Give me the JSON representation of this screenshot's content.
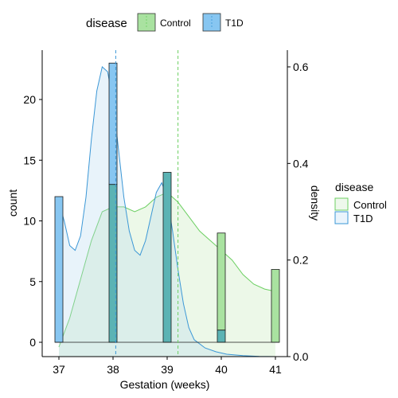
{
  "chart_data": {
    "type": "bar",
    "xlabel": "Gestation (weeks)",
    "ylabel": "count",
    "ylabel_right": "density",
    "x_ticks": [
      37,
      38,
      39,
      40,
      41
    ],
    "y_ticks": [
      0,
      5,
      10,
      15,
      20
    ],
    "y_right_ticks": [
      "0.0",
      "0.2",
      "0.4",
      "0.6"
    ],
    "xlim": [
      36.9,
      41.1
    ],
    "ylim": [
      0,
      23
    ],
    "y_right_lim": [
      0,
      0.6
    ],
    "legend_title": "disease",
    "legend_top": [
      "Control",
      "T1D"
    ],
    "legend_right": [
      "Control",
      "T1D"
    ],
    "series": [
      {
        "name": "Control",
        "color": "#6ccf62",
        "fill": "#a9e2a0",
        "bars": [
          {
            "x": 37,
            "count": 0
          },
          {
            "x": 38,
            "count": 13
          },
          {
            "x": 39,
            "count": 14
          },
          {
            "x": 40,
            "count": 9
          },
          {
            "x": 41,
            "count": 6
          }
        ],
        "density": [
          [
            37,
            0.02
          ],
          [
            37.2,
            0.08
          ],
          [
            37.4,
            0.16
          ],
          [
            37.6,
            0.24
          ],
          [
            37.8,
            0.3
          ],
          [
            38,
            0.31
          ],
          [
            38.2,
            0.31
          ],
          [
            38.4,
            0.3
          ],
          [
            38.6,
            0.31
          ],
          [
            38.8,
            0.33
          ],
          [
            39,
            0.34
          ],
          [
            39.2,
            0.32
          ],
          [
            39.4,
            0.29
          ],
          [
            39.6,
            0.26
          ],
          [
            39.8,
            0.24
          ],
          [
            40,
            0.22
          ],
          [
            40.2,
            0.2
          ],
          [
            40.4,
            0.17
          ],
          [
            40.6,
            0.15
          ],
          [
            40.8,
            0.14
          ],
          [
            41,
            0.135
          ]
        ],
        "mean": 39.2
      },
      {
        "name": "T1D",
        "color": "#3b97d6",
        "fill": "#87c6f1",
        "bars": [
          {
            "x": 37,
            "count": 12
          },
          {
            "x": 38,
            "count": 23
          },
          {
            "x": 39,
            "count": 14
          },
          {
            "x": 40,
            "count": 1
          },
          {
            "x": 41,
            "count": 0
          }
        ],
        "density": [
          [
            37,
            0.32
          ],
          [
            37.1,
            0.28
          ],
          [
            37.2,
            0.23
          ],
          [
            37.3,
            0.22
          ],
          [
            37.4,
            0.25
          ],
          [
            37.5,
            0.33
          ],
          [
            37.6,
            0.45
          ],
          [
            37.7,
            0.55
          ],
          [
            37.8,
            0.6
          ],
          [
            37.9,
            0.59
          ],
          [
            38,
            0.53
          ],
          [
            38.1,
            0.43
          ],
          [
            38.2,
            0.33
          ],
          [
            38.3,
            0.26
          ],
          [
            38.4,
            0.22
          ],
          [
            38.5,
            0.21
          ],
          [
            38.6,
            0.24
          ],
          [
            38.7,
            0.29
          ],
          [
            38.8,
            0.34
          ],
          [
            38.9,
            0.36
          ],
          [
            39,
            0.33
          ],
          [
            39.1,
            0.26
          ],
          [
            39.2,
            0.18
          ],
          [
            39.3,
            0.11
          ],
          [
            39.4,
            0.06
          ],
          [
            39.5,
            0.035
          ],
          [
            39.7,
            0.018
          ],
          [
            39.9,
            0.01
          ],
          [
            40.1,
            0.005
          ],
          [
            40.4,
            0.002
          ],
          [
            40.7,
            0.0005
          ],
          [
            41,
            0
          ]
        ],
        "mean": 38.05
      }
    ]
  }
}
